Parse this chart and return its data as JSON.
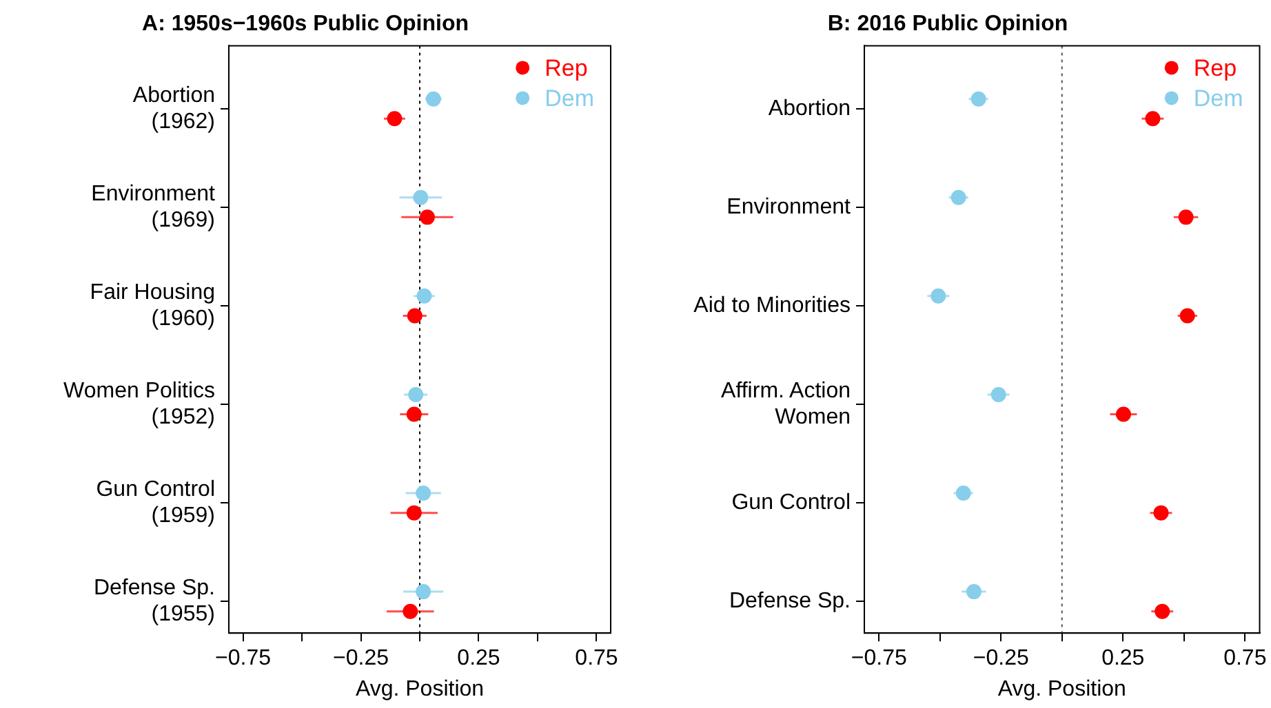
{
  "chart_data": [
    {
      "type": "scatter",
      "orientation": "horizontal",
      "title": "A: 1950s−1960s Public Opinion",
      "xlabel": "Avg. Position",
      "categories": [
        "Abortion\n(1962)",
        "Environment\n(1969)",
        "Fair Housing\n(1960)",
        "Women Politics\n(1952)",
        "Gun Control\n(1959)",
        "Defense Sp.\n(1955)"
      ],
      "series": [
        {
          "name": "Rep",
          "color": "#ff0000",
          "values": [
            -0.107,
            0.032,
            -0.021,
            -0.024,
            -0.024,
            -0.04
          ],
          "errors": [
            0.045,
            0.11,
            0.05,
            0.06,
            0.1,
            0.1
          ]
        },
        {
          "name": "Dem",
          "color": "#87ceeb",
          "values": [
            0.058,
            0.004,
            0.019,
            -0.017,
            0.015,
            0.015
          ],
          "errors": [
            0.035,
            0.09,
            0.045,
            0.05,
            0.075,
            0.085
          ]
        }
      ],
      "xlim": [
        -0.81,
        0.81
      ],
      "xticks": [
        -0.75,
        {
          "value": -0.5,
          "label": null
        },
        -0.25,
        {
          "value": 0,
          "label": null
        },
        0.25,
        {
          "value": 0.5,
          "label": null
        },
        0.75
      ],
      "ref_lines": [
        {
          "axis": "x",
          "value": 0,
          "color": "#000000",
          "line_style": "dotted"
        }
      ],
      "legend": "top right",
      "marker": "circle",
      "grid": false
    },
    {
      "type": "scatter",
      "orientation": "horizontal",
      "title": "B: 2016 Public Opinion",
      "xlabel": "Avg. Position",
      "categories": [
        "Abortion",
        "Environment",
        "Aid to Minorities",
        "Affirm. Action\nWomen",
        "Gun Control",
        "Defense Sp."
      ],
      "series": [
        {
          "name": "Rep",
          "color": "#ff0000",
          "values": [
            0.372,
            0.508,
            0.514,
            0.252,
            0.406,
            0.411
          ],
          "errors": [
            0.045,
            0.05,
            0.04,
            0.055,
            0.045,
            0.045
          ]
        },
        {
          "name": "Dem",
          "color": "#87ceeb",
          "values": [
            -0.342,
            -0.424,
            -0.507,
            -0.26,
            -0.404,
            -0.361
          ],
          "errors": [
            0.04,
            0.04,
            0.045,
            0.045,
            0.04,
            0.05
          ]
        }
      ],
      "xlim": [
        -0.81,
        0.81
      ],
      "xticks": [
        -0.75,
        {
          "value": -0.5,
          "label": null
        },
        -0.25,
        {
          "value": 0,
          "label": null
        },
        0.25,
        {
          "value": 0.5,
          "label": null
        },
        0.75
      ],
      "ref_lines": [
        {
          "axis": "x",
          "value": 0,
          "color": "#555555",
          "line_style": "dotted"
        }
      ],
      "legend": "top right",
      "marker": "circle",
      "grid": false
    }
  ]
}
